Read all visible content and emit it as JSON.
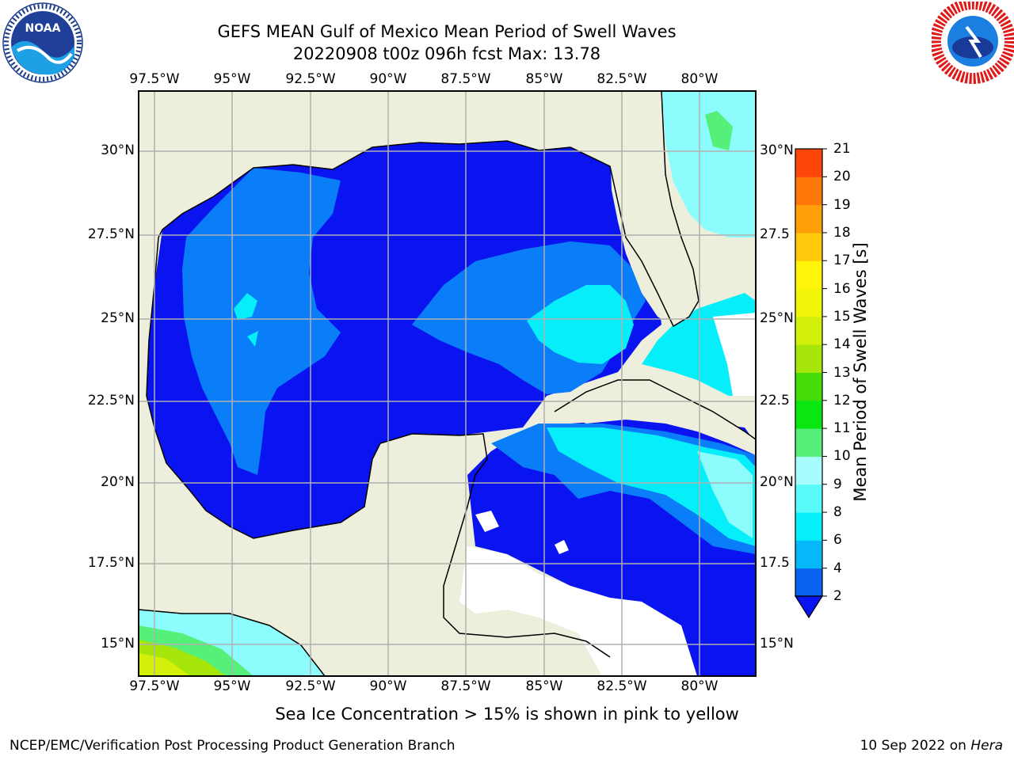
{
  "header": {
    "title_line1": "GEFS MEAN Gulf of Mexico Mean Period of Swell Waves",
    "title_line2": "20220908 t00z 096h fcst   Max: 13.78"
  },
  "logos": {
    "left": {
      "name": "NOAA",
      "ring_text": "NATIONAL OCEANIC AND ATMOSPHERIC ADMINISTRATION · U.S. DEPARTMENT OF COMMERCE"
    },
    "right": {
      "name": "NATIONAL WEATHER SERVICE"
    }
  },
  "map": {
    "lon_labels": [
      "97.5°W",
      "95°W",
      "92.5°W",
      "90°W",
      "87.5°W",
      "85°W",
      "82.5°W",
      "80°W"
    ],
    "lat_labels_left": [
      "30°N",
      "27.5°N",
      "25°N",
      "22.5°N",
      "20°N",
      "17.5°N",
      "15°N"
    ],
    "lat_labels_right": [
      "30°N",
      "27.5",
      "25°N",
      "22.5",
      "20°N",
      "17.5",
      "15°N"
    ],
    "colors": {
      "land": "#eeeedd",
      "ocean_main": "#0a14f0",
      "ocean_light": "#0a7ef8",
      "cyan": "#05f4f8",
      "light_cyan": "#8cfcfc",
      "green": "#55f07a",
      "white": "#ffffff"
    }
  },
  "colorbar": {
    "label": "Mean Period of Swell Waves [s]",
    "ticks": [
      "2",
      "4",
      "6",
      "8",
      "9",
      "10",
      "11",
      "12",
      "13",
      "14",
      "15",
      "16",
      "17",
      "18",
      "19",
      "20",
      "21"
    ],
    "colors": [
      "#0a63f0",
      "#05b8fa",
      "#05eefa",
      "#5afafa",
      "#a6fcfc",
      "#55f07a",
      "#0ae60f",
      "#46dc0a",
      "#a6e60a",
      "#d2f00a",
      "#f0f50a",
      "#fff50a",
      "#ffc80a",
      "#ffa00a",
      "#ff780a",
      "#ff460a",
      "#ff0a0a"
    ]
  },
  "footer": {
    "note": "Sea Ice Concentration > 15% is shown in pink to yellow",
    "left": "NCEP/EMC/Verification Post Processing Product Generation Branch",
    "right_prefix": "10 Sep 2022 on ",
    "right_host": "Hera"
  }
}
